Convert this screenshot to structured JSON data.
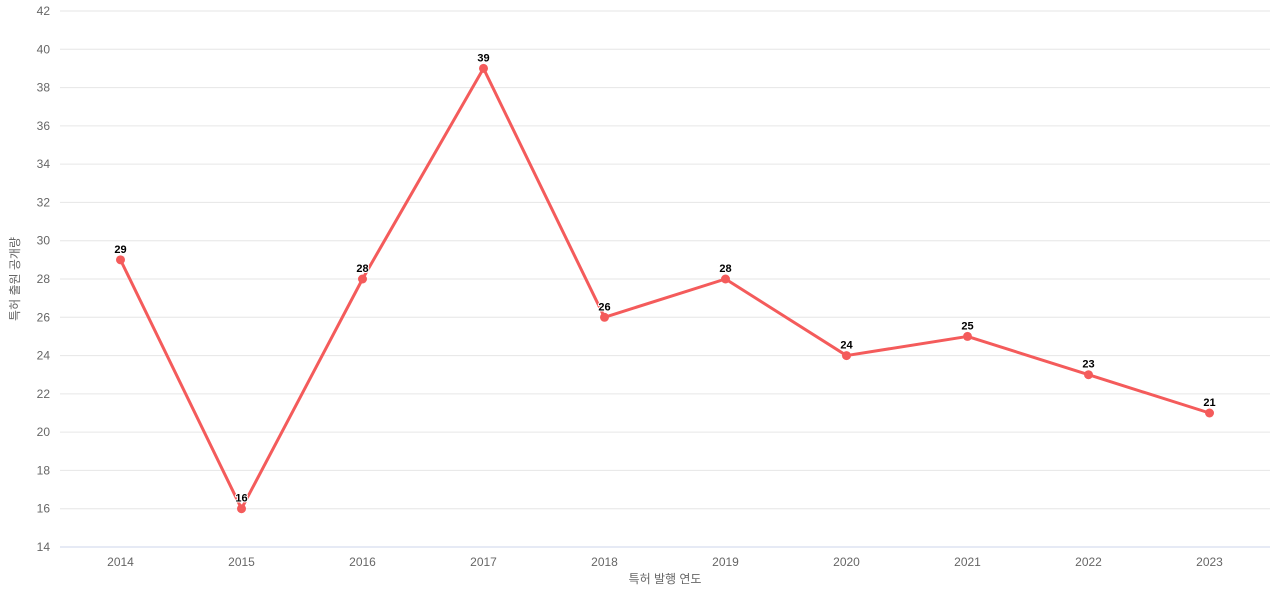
{
  "chart_data": {
    "type": "line",
    "categories": [
      "2014",
      "2015",
      "2016",
      "2017",
      "2018",
      "2019",
      "2020",
      "2021",
      "2022",
      "2023"
    ],
    "values": [
      29,
      16,
      28,
      39,
      26,
      28,
      24,
      25,
      23,
      21
    ],
    "data_labels": [
      "29",
      "16",
      "28",
      "39",
      "26",
      "28",
      "24",
      "25",
      "23",
      "21"
    ],
    "title": "",
    "xlabel": "특허 발행 연도",
    "ylabel": "특허 출원 공개량",
    "ylim": [
      14,
      42
    ],
    "ytick_step": 2,
    "grid": true,
    "legend": false,
    "colors": {
      "line": "#f45b5b",
      "marker": "#f45b5b",
      "grid": "#e6e6e6",
      "axis_line": "#ccd6eb",
      "tick_label": "#666666",
      "axis_title": "#666666",
      "data_label": "#000000",
      "background": "#ffffff"
    }
  }
}
